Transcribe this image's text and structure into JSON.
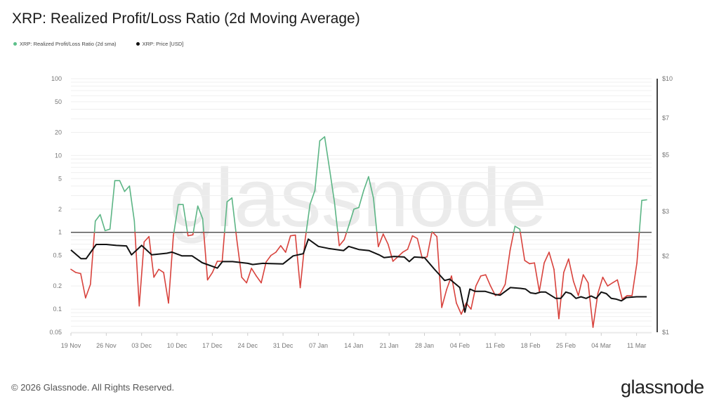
{
  "title": "XRP: Realized Profit/Loss Ratio (2d Moving Average)",
  "legend": [
    {
      "label": "XRP: Realized Profit/Loss Ratio (2d sma)",
      "color": "#5cc08a"
    },
    {
      "label": "XRP: Price [USD]",
      "color": "#111111"
    }
  ],
  "footer": "© 2026 Glassnode. All Rights Reserved.",
  "logo": "glassnode",
  "watermark": "glassnode",
  "chart_data": {
    "type": "line",
    "title": "XRP: Realized Profit/Loss Ratio (2d Moving Average)",
    "x_start": "19 Nov",
    "x_range_days": [
      0,
      114
    ],
    "xticks": [
      "19 Nov",
      "26 Nov",
      "03 Dec",
      "10 Dec",
      "17 Dec",
      "24 Dec",
      "31 Dec",
      "07 Jan",
      "14 Jan",
      "21 Jan",
      "28 Jan",
      "04 Feb",
      "11 Feb",
      "18 Feb",
      "25 Feb",
      "04 Mar",
      "11 Mar"
    ],
    "left_axis": {
      "scale": "log",
      "range": [
        0.05,
        100
      ],
      "ticks": [
        "100",
        "50",
        "20",
        "10",
        "5",
        "2",
        "1",
        "0.5",
        "0.2",
        "0.1",
        "0.05"
      ]
    },
    "right_axis": {
      "scale": "log",
      "range": [
        1,
        10
      ],
      "ticks": [
        {
          "v": 10,
          "label": "$10"
        },
        {
          "v": 7,
          "label": "$7"
        },
        {
          "v": 5,
          "label": "$5"
        },
        {
          "v": 3,
          "label": "$3"
        },
        {
          "v": 2,
          "label": "$2"
        },
        {
          "v": 1,
          "label": "$1"
        }
      ]
    },
    "reference_line": 1,
    "colors": {
      "profit": "#5cb585",
      "loss": "#d8423c",
      "price": "#111111",
      "reference": "#555555"
    },
    "series": [
      {
        "name": "XRP: Realized Profit/Loss Ratio (2d sma)",
        "axis": "left",
        "values": [
          0.33,
          0.3,
          0.29,
          0.14,
          0.21,
          1.4,
          1.7,
          1.05,
          1.1,
          4.7,
          4.7,
          3.4,
          4.0,
          1.4,
          0.11,
          0.75,
          0.88,
          0.26,
          0.33,
          0.3,
          0.12,
          0.9,
          2.3,
          2.3,
          0.9,
          0.93,
          2.2,
          1.5,
          0.24,
          0.3,
          0.42,
          0.42,
          2.5,
          2.8,
          0.8,
          0.26,
          0.22,
          0.34,
          0.27,
          0.22,
          0.41,
          0.5,
          0.55,
          0.67,
          0.55,
          0.9,
          0.92,
          0.19,
          0.8,
          2.3,
          3.5,
          15.5,
          17.5,
          6.7,
          2.5,
          0.67,
          0.8,
          1.25,
          2.0,
          2.1,
          3.5,
          5.3,
          2.8,
          0.65,
          0.95,
          0.7,
          0.42,
          0.48,
          0.55,
          0.6,
          0.9,
          0.83,
          0.46,
          0.48,
          1.02,
          0.88,
          0.105,
          0.18,
          0.27,
          0.12,
          0.086,
          0.12,
          0.1,
          0.2,
          0.27,
          0.28,
          0.2,
          0.15,
          0.16,
          0.21,
          0.58,
          1.2,
          1.1,
          0.43,
          0.39,
          0.4,
          0.17,
          0.4,
          0.55,
          0.33,
          0.075,
          0.3,
          0.45,
          0.23,
          0.15,
          0.28,
          0.22,
          0.058,
          0.16,
          0.26,
          0.2,
          0.22,
          0.24,
          0.135,
          0.15,
          0.15,
          0.4,
          2.6,
          2.65
        ]
      },
      {
        "name": "XRP: Price [USD]",
        "axis": "right",
        "points": [
          [
            0,
            2.11
          ],
          [
            2,
            1.95
          ],
          [
            3,
            1.95
          ],
          [
            5,
            2.22
          ],
          [
            7,
            2.22
          ],
          [
            9,
            2.2
          ],
          [
            11,
            2.19
          ],
          [
            12,
            2.02
          ],
          [
            14,
            2.2
          ],
          [
            16,
            2.02
          ],
          [
            19,
            2.05
          ],
          [
            20,
            2.07
          ],
          [
            22,
            2.0
          ],
          [
            24,
            2.0
          ],
          [
            26,
            1.88
          ],
          [
            29,
            1.79
          ],
          [
            30,
            1.9
          ],
          [
            32,
            1.9
          ],
          [
            35,
            1.87
          ],
          [
            36,
            1.85
          ],
          [
            38,
            1.87
          ],
          [
            42,
            1.86
          ],
          [
            44,
            2.0
          ],
          [
            46,
            2.04
          ],
          [
            47,
            2.33
          ],
          [
            49,
            2.18
          ],
          [
            51,
            2.14
          ],
          [
            54,
            2.1
          ],
          [
            55,
            2.18
          ],
          [
            57,
            2.12
          ],
          [
            59,
            2.1
          ],
          [
            61,
            2.02
          ],
          [
            62,
            1.97
          ],
          [
            64,
            1.99
          ],
          [
            66,
            1.98
          ],
          [
            67,
            1.9
          ],
          [
            68,
            1.98
          ],
          [
            70,
            1.97
          ],
          [
            72,
            1.77
          ],
          [
            74,
            1.6
          ],
          [
            75,
            1.62
          ],
          [
            77,
            1.5
          ],
          [
            78,
            1.2
          ],
          [
            79,
            1.48
          ],
          [
            80,
            1.45
          ],
          [
            82,
            1.45
          ],
          [
            84,
            1.41
          ],
          [
            85,
            1.4
          ],
          [
            87,
            1.5
          ],
          [
            89,
            1.49
          ],
          [
            90,
            1.48
          ],
          [
            91,
            1.43
          ],
          [
            92,
            1.42
          ],
          [
            93,
            1.44
          ],
          [
            94,
            1.44
          ],
          [
            96,
            1.36
          ],
          [
            97,
            1.36
          ],
          [
            98,
            1.44
          ],
          [
            99,
            1.42
          ],
          [
            100,
            1.36
          ],
          [
            101,
            1.38
          ],
          [
            102,
            1.36
          ],
          [
            103,
            1.39
          ],
          [
            104,
            1.36
          ],
          [
            105,
            1.44
          ],
          [
            106,
            1.42
          ],
          [
            107,
            1.36
          ],
          [
            108,
            1.35
          ],
          [
            109,
            1.33
          ],
          [
            110,
            1.37
          ],
          [
            112,
            1.38
          ],
          [
            114,
            1.38
          ]
        ]
      }
    ]
  }
}
